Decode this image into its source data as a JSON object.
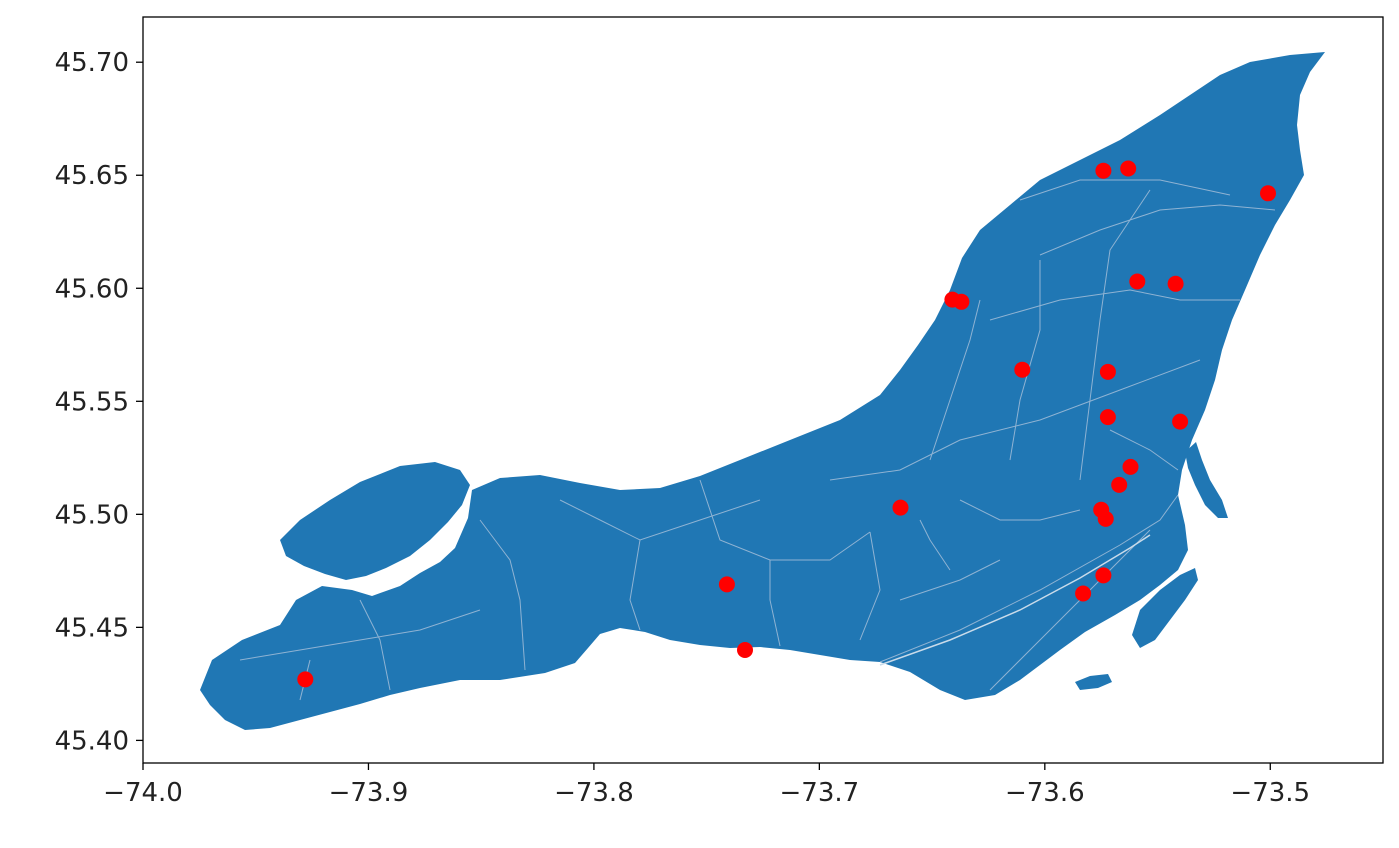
{
  "chart_data": {
    "type": "scatter",
    "title": "",
    "xlabel": "",
    "ylabel": "",
    "xlim": [
      -74.0,
      -73.45
    ],
    "ylim": [
      45.39,
      45.72
    ],
    "x_ticks": [
      "−74.0",
      "−73.9",
      "−73.8",
      "−73.7",
      "−73.6",
      "−73.5"
    ],
    "x_tick_values": [
      -74.0,
      -73.9,
      -73.8,
      -73.7,
      -73.6,
      -73.5
    ],
    "y_ticks": [
      "45.40",
      "45.45",
      "45.50",
      "45.55",
      "45.60",
      "45.65",
      "45.70"
    ],
    "y_tick_values": [
      45.4,
      45.45,
      45.5,
      45.55,
      45.6,
      45.65,
      45.7
    ],
    "grid": false,
    "legend": false,
    "colors": {
      "island_fill": "#2077b4",
      "district_lines": "#8fb3d3",
      "points": "#ff0000",
      "axes": "#000000"
    },
    "series": [
      {
        "points": [
          {
            "x": -73.928,
            "y": 45.427
          },
          {
            "x": -73.741,
            "y": 45.469
          },
          {
            "x": -73.733,
            "y": 45.44
          },
          {
            "x": -73.664,
            "y": 45.503
          },
          {
            "x": -73.641,
            "y": 45.595
          },
          {
            "x": -73.637,
            "y": 45.594
          },
          {
            "x": -73.61,
            "y": 45.564
          },
          {
            "x": -73.574,
            "y": 45.652
          },
          {
            "x": -73.563,
            "y": 45.653
          },
          {
            "x": -73.501,
            "y": 45.642
          },
          {
            "x": -73.559,
            "y": 45.603
          },
          {
            "x": -73.542,
            "y": 45.602
          },
          {
            "x": -73.572,
            "y": 45.563
          },
          {
            "x": -73.572,
            "y": 45.543
          },
          {
            "x": -73.54,
            "y": 45.541
          },
          {
            "x": -73.562,
            "y": 45.521
          },
          {
            "x": -73.567,
            "y": 45.513
          },
          {
            "x": -73.575,
            "y": 45.502
          },
          {
            "x": -73.573,
            "y": 45.498
          },
          {
            "x": -73.574,
            "y": 45.473
          },
          {
            "x": -73.583,
            "y": 45.465
          }
        ]
      }
    ]
  }
}
